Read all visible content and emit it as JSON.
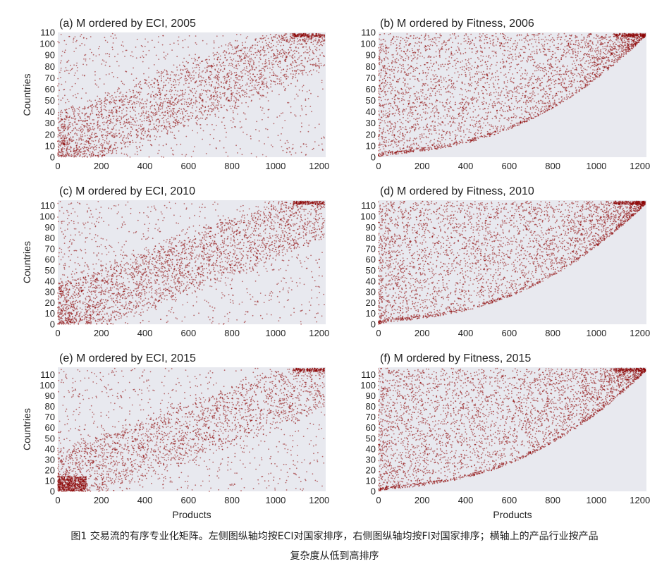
{
  "figure": {
    "caption_line1": "图1 交易流的有序专业化矩阵。左侧图纵轴均按ECI对国家排序，右侧图纵轴均按FI对国家排序；横轴上的产品行业按产品",
    "caption_line2": "复杂度从低到高排序"
  },
  "style": {
    "point_color": "#8b0000",
    "panel_bg": "#e8e9ef",
    "text_color": "#222222"
  },
  "chart_data": [
    {
      "type": "scatter",
      "title": "(a) M ordered by ECI, 2005",
      "xlabel": "",
      "ylabel": "Countries",
      "xlim": [
        0,
        1230
      ],
      "ylim": [
        0,
        110
      ],
      "xticks": [
        0,
        200,
        400,
        600,
        800,
        1000,
        1200
      ],
      "yticks": [
        0,
        10,
        20,
        30,
        40,
        50,
        60,
        70,
        80,
        90,
        100,
        110
      ],
      "pattern": "eci",
      "n_points": 3200
    },
    {
      "type": "scatter",
      "title": "(b) M ordered by Fitness, 2006",
      "xlabel": "",
      "ylabel": "",
      "xlim": [
        0,
        1230
      ],
      "ylim": [
        0,
        110
      ],
      "xticks": [
        0,
        200,
        400,
        600,
        800,
        1000,
        1200
      ],
      "yticks": [
        0,
        10,
        20,
        30,
        40,
        50,
        60,
        70,
        80,
        90,
        100,
        110
      ],
      "pattern": "fitness",
      "n_points": 3600
    },
    {
      "type": "scatter",
      "title": "(c) M ordered by ECI, 2010",
      "xlabel": "",
      "ylabel": "Countries",
      "xlim": [
        0,
        1230
      ],
      "ylim": [
        0,
        115
      ],
      "xticks": [
        0,
        200,
        400,
        600,
        800,
        1000,
        1200
      ],
      "yticks": [
        0,
        10,
        20,
        30,
        40,
        50,
        60,
        70,
        80,
        90,
        100,
        110
      ],
      "pattern": "eci",
      "n_points": 3400
    },
    {
      "type": "scatter",
      "title": "(d) M ordered by Fitness, 2010",
      "xlabel": "",
      "ylabel": "",
      "xlim": [
        0,
        1230
      ],
      "ylim": [
        0,
        115
      ],
      "xticks": [
        0,
        200,
        400,
        600,
        800,
        1000,
        1200
      ],
      "yticks": [
        0,
        10,
        20,
        30,
        40,
        50,
        60,
        70,
        80,
        90,
        100,
        110
      ],
      "pattern": "fitness",
      "n_points": 3800
    },
    {
      "type": "scatter",
      "title": "(e) M ordered by ECI, 2015",
      "xlabel": "Products",
      "ylabel": "Countries",
      "xlim": [
        0,
        1230
      ],
      "ylim": [
        0,
        117
      ],
      "xticks": [
        0,
        200,
        400,
        600,
        800,
        1000,
        1200
      ],
      "yticks": [
        0,
        10,
        20,
        30,
        40,
        50,
        60,
        70,
        80,
        90,
        100,
        110
      ],
      "pattern": "eci2015",
      "n_points": 3400
    },
    {
      "type": "scatter",
      "title": "(f) M ordered by Fitness, 2015",
      "xlabel": "Products",
      "ylabel": "",
      "xlim": [
        0,
        1230
      ],
      "ylim": [
        0,
        117
      ],
      "xticks": [
        0,
        200,
        400,
        600,
        800,
        1000,
        1200
      ],
      "yticks": [
        0,
        10,
        20,
        30,
        40,
        50,
        60,
        70,
        80,
        90,
        100,
        110
      ],
      "pattern": "fitness",
      "n_points": 3800
    }
  ]
}
